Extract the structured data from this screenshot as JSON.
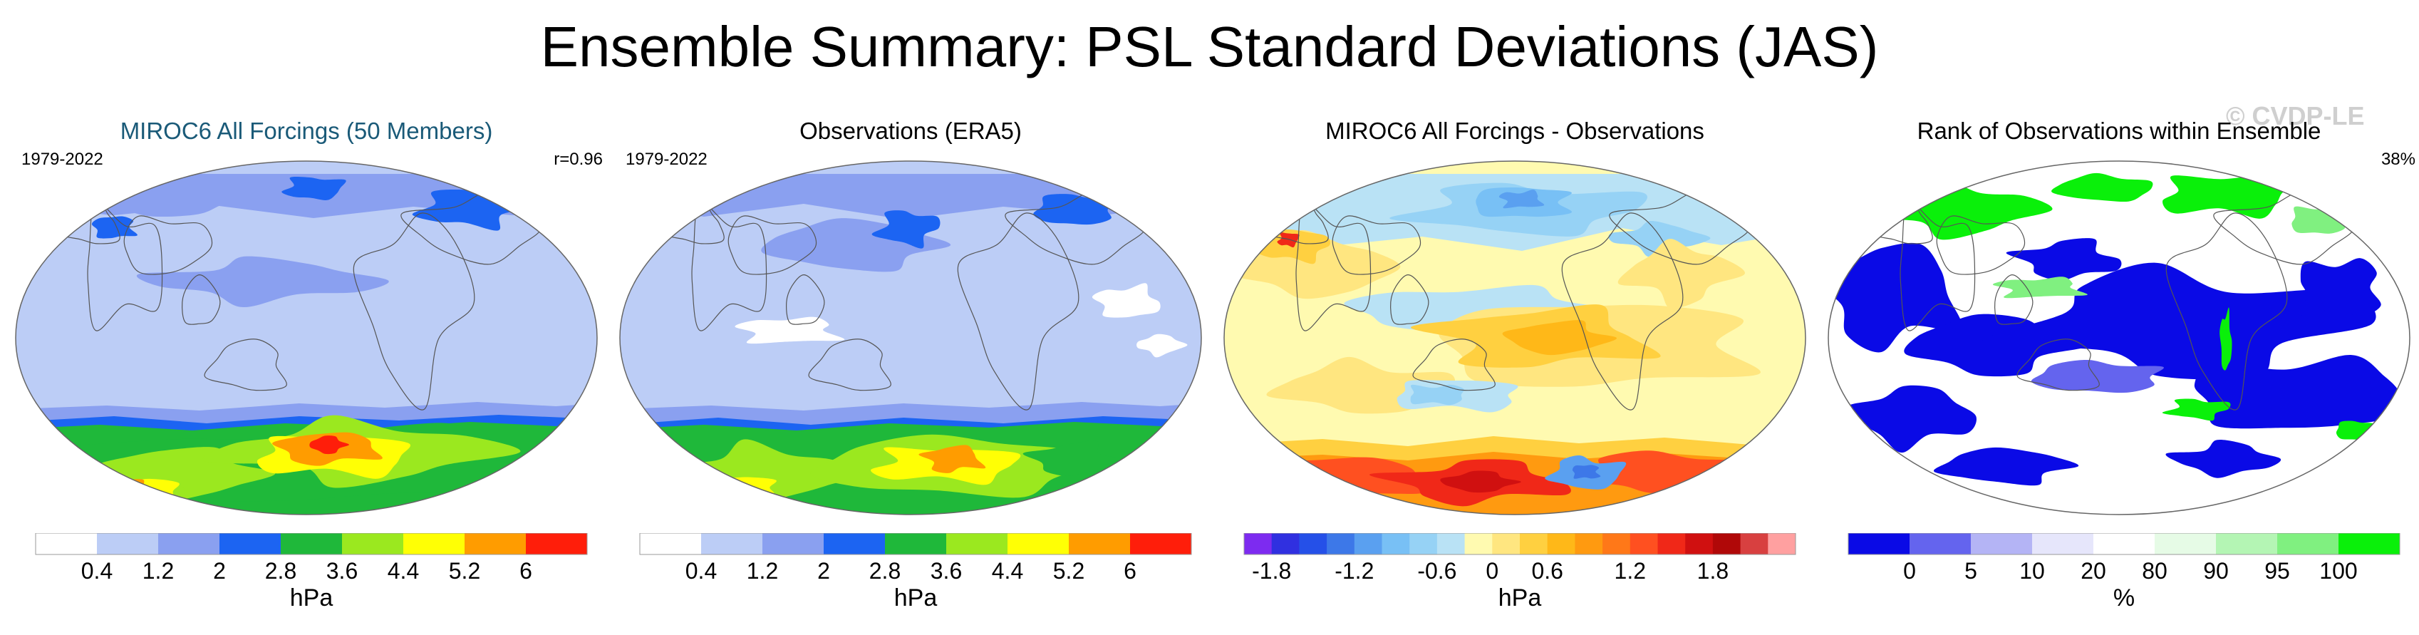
{
  "title": "Ensemble Summary: PSL Standard Deviations (JAS)",
  "watermark": "© CVDP-LE",
  "panels": [
    {
      "title": "MIROC6 All Forcings (50 Members)",
      "title_color": "#1a5a78",
      "period": "1979-2022",
      "right_label": "r=0.96",
      "map_scheme": "sd_model",
      "colorbar": {
        "colors": [
          "#ffffff",
          "#bccdf6",
          "#8aa0f0",
          "#1c64f2",
          "#1fb83a",
          "#9be81f",
          "#ffff05",
          "#ff9c00",
          "#ff1e0a"
        ],
        "labels": [
          "0.4",
          "1.2",
          "2",
          "2.8",
          "3.6",
          "4.4",
          "5.2",
          "6"
        ],
        "unit": "hPa"
      }
    },
    {
      "title": "Observations (ERA5)",
      "title_color": "#000000",
      "period": "1979-2022",
      "right_label": "",
      "map_scheme": "sd_obs",
      "colorbar": {
        "colors": [
          "#ffffff",
          "#bccdf6",
          "#8aa0f0",
          "#1c64f2",
          "#1fb83a",
          "#9be81f",
          "#ffff05",
          "#ff9c00",
          "#ff1e0a"
        ],
        "labels": [
          "0.4",
          "1.2",
          "2",
          "2.8",
          "3.6",
          "4.4",
          "5.2",
          "6"
        ],
        "unit": "hPa"
      }
    },
    {
      "title": "MIROC6 All Forcings - Observations",
      "title_color": "#000000",
      "period": "",
      "right_label": "",
      "map_scheme": "diff",
      "colorbar": {
        "colors": [
          "#7d2bf0",
          "#3030e0",
          "#2550e8",
          "#3d78e8",
          "#5aa0f0",
          "#78c0f5",
          "#96d2f5",
          "#b9e2f5",
          "#fffab0",
          "#ffe680",
          "#ffd040",
          "#ffb818",
          "#ff9a10",
          "#ff7818",
          "#ff5020",
          "#f02818",
          "#d01010",
          "#b00808",
          "#d84040",
          "#ffa0a0"
        ],
        "labels": [
          "-1.8",
          "-1.2",
          "-0.6",
          "0",
          "0.6",
          "1.2",
          "1.8"
        ],
        "label_index": [
          1,
          4,
          7,
          9,
          11,
          14,
          17
        ],
        "unit": "hPa"
      }
    },
    {
      "title": "Rank of Observations within Ensemble",
      "title_color": "#000000",
      "period": "",
      "right_label": "38%",
      "map_scheme": "rank",
      "colorbar": {
        "colors": [
          "#0a0ae6",
          "#6464ee",
          "#b4b4f5",
          "#e6e6fb",
          "#ffffff",
          "#e6fbe6",
          "#b4f5b4",
          "#80f080",
          "#0af00a"
        ],
        "labels": [
          "0",
          "5",
          "10",
          "20",
          "80",
          "90",
          "95",
          "100"
        ],
        "unit": "%"
      }
    }
  ]
}
